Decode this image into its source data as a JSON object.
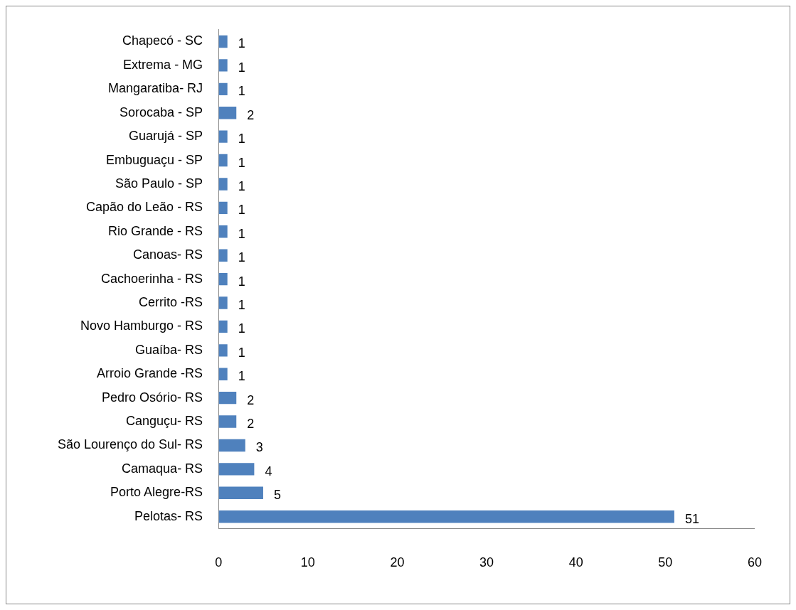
{
  "chart_data": {
    "type": "bar",
    "orientation": "horizontal",
    "categories": [
      "Chapecó - SC",
      "Extrema - MG",
      "Mangaratiba- RJ",
      "Sorocaba - SP",
      "Guarujá - SP",
      "Embuguaçu - SP",
      "São Paulo - SP",
      "Capão do Leão - RS",
      "Rio Grande - RS",
      "Canoas- RS",
      "Cachoerinha - RS",
      "Cerrito -RS",
      "Novo Hamburgo - RS",
      "Guaíba- RS",
      "Arroio Grande -RS",
      "Pedro Osório- RS",
      "Canguçu- RS",
      "São Lourenço do Sul- RS",
      "Camaqua- RS",
      "Porto Alegre-RS",
      "Pelotas- RS"
    ],
    "values": [
      1,
      1,
      1,
      2,
      1,
      1,
      1,
      1,
      1,
      1,
      1,
      1,
      1,
      1,
      1,
      2,
      2,
      3,
      4,
      5,
      51
    ],
    "color": "#4f81bd",
    "xlim": [
      0,
      60
    ],
    "xticks": [
      0,
      10,
      20,
      30,
      40,
      50,
      60
    ],
    "grid": false,
    "legend": false,
    "data_labels": true
  }
}
